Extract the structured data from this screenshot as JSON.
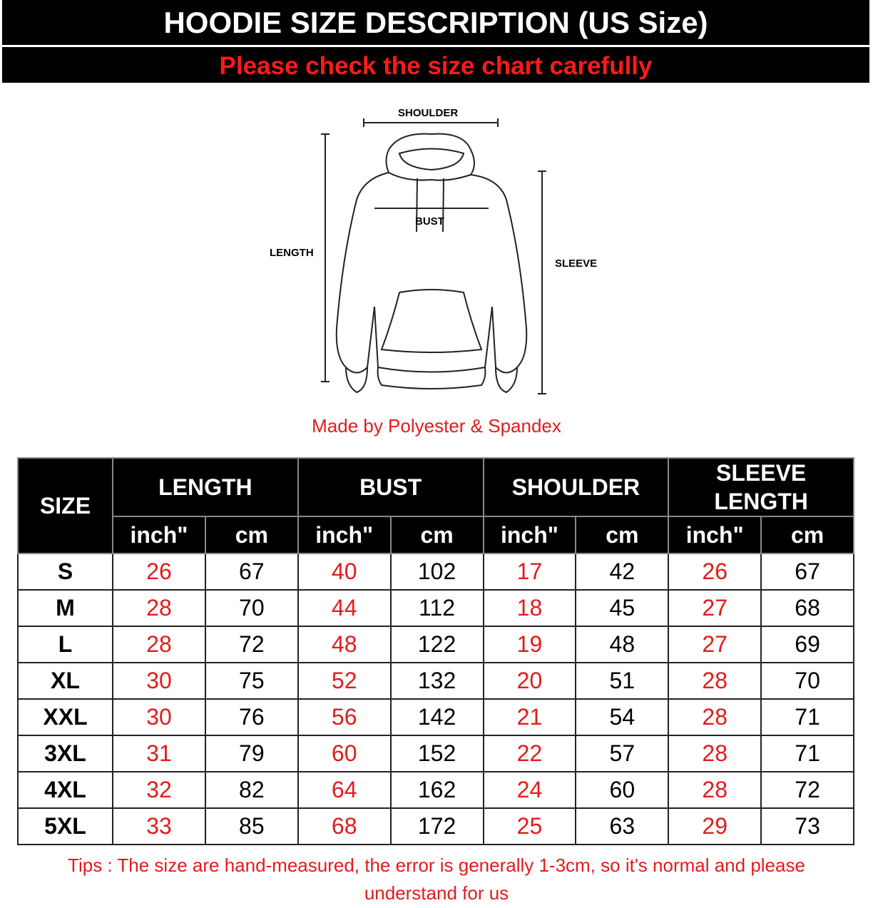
{
  "header": {
    "title": "HOODIE SIZE DESCRIPTION (US Size)",
    "subtitle": "Please check the size chart carefully"
  },
  "diagram": {
    "labels": {
      "shoulder": "SHOULDER",
      "bust": "BUST",
      "length": "LENGTH",
      "sleeve": "SLEEVE"
    }
  },
  "material": "Made by Polyester & Spandex",
  "table": {
    "size_header": "SIZE",
    "groups": [
      "LENGTH",
      "BUST",
      "SHOULDER",
      "SLEEVE LENGTH"
    ],
    "units": [
      "inch\"",
      "cm"
    ],
    "rows": [
      {
        "size": "S",
        "values": [
          "26",
          "67",
          "40",
          "102",
          "17",
          "42",
          "26",
          "67"
        ]
      },
      {
        "size": "M",
        "values": [
          "28",
          "70",
          "44",
          "112",
          "18",
          "45",
          "27",
          "68"
        ]
      },
      {
        "size": "L",
        "values": [
          "28",
          "72",
          "48",
          "122",
          "19",
          "48",
          "27",
          "69"
        ]
      },
      {
        "size": "XL",
        "values": [
          "30",
          "75",
          "52",
          "132",
          "20",
          "51",
          "28",
          "70"
        ]
      },
      {
        "size": "XXL",
        "values": [
          "30",
          "76",
          "56",
          "142",
          "21",
          "54",
          "28",
          "71"
        ]
      },
      {
        "size": "3XL",
        "values": [
          "31",
          "79",
          "60",
          "152",
          "22",
          "57",
          "28",
          "71"
        ]
      },
      {
        "size": "4XL",
        "values": [
          "32",
          "82",
          "64",
          "162",
          "24",
          "60",
          "28",
          "72"
        ]
      },
      {
        "size": "5XL",
        "values": [
          "33",
          "85",
          "68",
          "172",
          "25",
          "63",
          "29",
          "73"
        ]
      }
    ]
  },
  "tips": "Tips : The size are hand-measured, the error is generally 1-3cm, so it's normal and please understand for us",
  "colors": {
    "accent_red": "#e31b1b",
    "header_bg": "#000000"
  }
}
